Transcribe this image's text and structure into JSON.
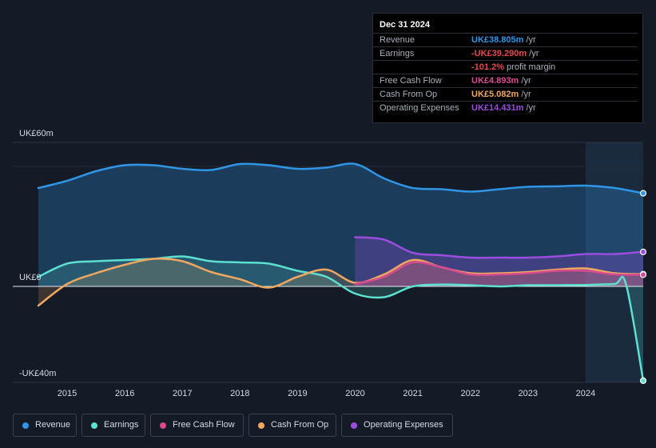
{
  "chart_data": {
    "type": "area",
    "y_axis_labels": {
      "top": "UK£60m",
      "zero": "UK£0",
      "bottom": "-UK£40m"
    },
    "ylim": [
      -40,
      60
    ],
    "x_ticks": [
      "2015",
      "2016",
      "2017",
      "2018",
      "2019",
      "2020",
      "2021",
      "2022",
      "2023",
      "2024"
    ],
    "x_tick_values": [
      2015,
      2016,
      2017,
      2018,
      2019,
      2020,
      2021,
      2022,
      2023,
      2024
    ],
    "xlim": [
      2014.5,
      2025.0
    ],
    "forecast_shade_start": 2024.0,
    "series": [
      {
        "key": "revenue",
        "name": "Revenue",
        "color": "#2f95e6",
        "x": [
          2014.5,
          2015.0,
          2015.5,
          2016.0,
          2016.5,
          2017.0,
          2017.5,
          2018.0,
          2018.5,
          2019.0,
          2019.5,
          2020.0,
          2020.5,
          2021.0,
          2021.5,
          2022.0,
          2022.5,
          2023.0,
          2023.5,
          2024.0,
          2024.5,
          2025.0
        ],
        "y": [
          41,
          44,
          48,
          50.5,
          50.5,
          49,
          48.5,
          51,
          50.5,
          49,
          49.5,
          51,
          45,
          41,
          40.5,
          39.5,
          40.5,
          41.5,
          41.7,
          42,
          41,
          38.8
        ]
      },
      {
        "key": "earnings",
        "name": "Earnings",
        "color": "#5ce0d0",
        "x": [
          2014.5,
          2015.0,
          2015.5,
          2016.0,
          2016.5,
          2017.0,
          2017.5,
          2018.0,
          2018.5,
          2019.0,
          2019.5,
          2020.0,
          2020.5,
          2021.0,
          2021.5,
          2022.0,
          2022.5,
          2023.0,
          2023.5,
          2024.0,
          2024.5,
          2024.7,
          2025.0
        ],
        "y": [
          4,
          9.5,
          10.5,
          11,
          11.5,
          12.5,
          10.5,
          10,
          9.5,
          6.5,
          4,
          -3,
          -4.5,
          0,
          0.8,
          0.5,
          0,
          0.5,
          0.5,
          0.6,
          1,
          1,
          -39.3
        ]
      },
      {
        "key": "fcf",
        "name": "Free Cash Flow",
        "color": "#d94b8e",
        "x": [
          2020.0,
          2020.5,
          2021.0,
          2021.5,
          2022.0,
          2022.5,
          2023.0,
          2023.5,
          2024.0,
          2024.5,
          2025.0
        ],
        "y": [
          1,
          4,
          10,
          8,
          5,
          5,
          5.5,
          6.5,
          6.5,
          5,
          4.9
        ]
      },
      {
        "key": "cfo",
        "name": "Cash From Op",
        "color": "#f0a860",
        "x": [
          2014.5,
          2015.0,
          2015.5,
          2016.0,
          2016.5,
          2017.0,
          2017.5,
          2018.0,
          2018.5,
          2019.0,
          2019.5,
          2020.0,
          2020.5,
          2021.0,
          2021.5,
          2022.0,
          2022.5,
          2023.0,
          2023.5,
          2024.0,
          2024.5,
          2025.0
        ],
        "y": [
          -8,
          1,
          5.5,
          9,
          11.5,
          10.5,
          6,
          3,
          -0.5,
          4,
          7,
          1.5,
          5,
          11,
          8,
          5.5,
          5.5,
          6,
          7,
          7.5,
          5.5,
          5.1
        ]
      },
      {
        "key": "opex",
        "name": "Operating Expenses",
        "color": "#9b4de0",
        "x": [
          2020.0,
          2020.5,
          2021.0,
          2021.5,
          2022.0,
          2022.5,
          2023.0,
          2023.5,
          2024.0,
          2024.5,
          2025.0
        ],
        "y": [
          20.5,
          19.5,
          14,
          13,
          12,
          12,
          12,
          12.5,
          13.5,
          13.5,
          14.4
        ]
      }
    ]
  },
  "tooltip": {
    "date": "Dec 31 2024",
    "rows": [
      {
        "label": "Revenue",
        "value": "UK£38.805m",
        "unit": " /yr",
        "color": "#2f95e6"
      },
      {
        "label": "Earnings",
        "value": "-UK£39.290m",
        "unit": " /yr",
        "color": "#e5484d"
      },
      {
        "label": "",
        "value": "-101.2%",
        "unit": " profit margin",
        "color": "#e5484d"
      },
      {
        "label": "Free Cash Flow",
        "value": "UK£4.893m",
        "unit": " /yr",
        "color": "#d94b8e"
      },
      {
        "label": "Cash From Op",
        "value": "UK£5.082m",
        "unit": " /yr",
        "color": "#f0a860"
      },
      {
        "label": "Operating Expenses",
        "value": "UK£14.431m",
        "unit": " /yr",
        "color": "#9b4de0"
      }
    ]
  },
  "legend": [
    {
      "label": "Revenue",
      "color": "#2f95e6"
    },
    {
      "label": "Earnings",
      "color": "#5ce0d0"
    },
    {
      "label": "Free Cash Flow",
      "color": "#d94b8e"
    },
    {
      "label": "Cash From Op",
      "color": "#f0a860"
    },
    {
      "label": "Operating Expenses",
      "color": "#9b4de0"
    }
  ]
}
